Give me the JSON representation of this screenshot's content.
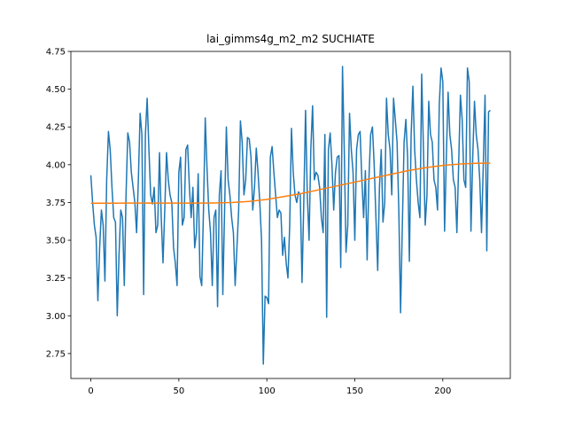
{
  "chart_data": {
    "type": "line",
    "title": "lai_gimms4g_m2_m2 SUCHIATE",
    "x": [
      0,
      1,
      2,
      3,
      4,
      5,
      6,
      7,
      8,
      9,
      10,
      11,
      12,
      13,
      14,
      15,
      16,
      17,
      18,
      19,
      20,
      21,
      22,
      23,
      24,
      25,
      26,
      27,
      28,
      29,
      30,
      31,
      32,
      33,
      34,
      35,
      36,
      37,
      38,
      39,
      40,
      41,
      42,
      43,
      44,
      45,
      46,
      47,
      48,
      49,
      50,
      51,
      52,
      53,
      54,
      55,
      56,
      57,
      58,
      59,
      60,
      61,
      62,
      63,
      64,
      65,
      66,
      67,
      68,
      69,
      70,
      71,
      72,
      73,
      74,
      75,
      76,
      77,
      78,
      79,
      80,
      81,
      82,
      83,
      84,
      85,
      86,
      87,
      88,
      89,
      90,
      91,
      92,
      93,
      94,
      95,
      96,
      97,
      98,
      99,
      100,
      101,
      102,
      103,
      104,
      105,
      106,
      107,
      108,
      109,
      110,
      111,
      112,
      113,
      114,
      115,
      116,
      117,
      118,
      119,
      120,
      121,
      122,
      123,
      124,
      125,
      126,
      127,
      128,
      129,
      130,
      131,
      132,
      133,
      134,
      135,
      136,
      137,
      138,
      139,
      140,
      141,
      142,
      143,
      144,
      145,
      146,
      147,
      148,
      149,
      150,
      151,
      152,
      153,
      154,
      155,
      156,
      157,
      158,
      159,
      160,
      161,
      162,
      163,
      164,
      165,
      166,
      167,
      168,
      169,
      170,
      171,
      172,
      173,
      174,
      175,
      176,
      177,
      178,
      179,
      180,
      181,
      182,
      183,
      184,
      185,
      186,
      187,
      188,
      189,
      190,
      191,
      192,
      193,
      194,
      195,
      196,
      197,
      198,
      199,
      200,
      201,
      202,
      203,
      204,
      205,
      206,
      207,
      208,
      209,
      210,
      211,
      212,
      213,
      214,
      215,
      216,
      217,
      218,
      219,
      220,
      221,
      222,
      223,
      224,
      225,
      226,
      227
    ],
    "series": [
      {
        "color": "#1f77b4",
        "values": [
          3.93,
          3.75,
          3.6,
          3.52,
          3.1,
          3.45,
          3.7,
          3.6,
          3.23,
          3.9,
          4.22,
          4.1,
          3.85,
          3.65,
          3.62,
          3.0,
          3.4,
          3.7,
          3.65,
          3.2,
          3.8,
          4.21,
          4.15,
          3.95,
          3.85,
          3.75,
          3.55,
          3.9,
          4.34,
          4.2,
          3.14,
          4.2,
          4.44,
          4.1,
          3.8,
          3.74,
          3.85,
          3.55,
          3.6,
          4.08,
          3.65,
          3.35,
          3.7,
          4.08,
          3.9,
          3.8,
          3.75,
          3.45,
          3.35,
          3.2,
          3.95,
          4.05,
          3.6,
          3.65,
          4.1,
          4.13,
          3.85,
          3.65,
          3.85,
          3.45,
          3.55,
          3.94,
          3.26,
          3.2,
          3.7,
          4.31,
          3.98,
          3.7,
          3.55,
          3.2,
          3.65,
          3.7,
          3.06,
          3.8,
          3.96,
          3.14,
          3.7,
          4.25,
          3.9,
          3.8,
          3.65,
          3.55,
          3.2,
          3.45,
          3.7,
          4.29,
          4.15,
          3.8,
          3.9,
          4.18,
          4.17,
          4.05,
          3.7,
          3.85,
          4.11,
          3.95,
          3.75,
          3.5,
          2.68,
          3.13,
          3.12,
          3.08,
          4.05,
          4.12,
          3.95,
          3.8,
          3.65,
          3.7,
          3.68,
          3.4,
          3.52,
          3.35,
          3.25,
          3.6,
          4.24,
          3.95,
          3.8,
          3.75,
          3.82,
          3.8,
          3.22,
          3.75,
          4.36,
          3.8,
          3.5,
          4.1,
          4.39,
          3.9,
          3.95,
          3.93,
          3.85,
          3.65,
          3.55,
          4.2,
          2.99,
          4.1,
          4.21,
          4.0,
          3.7,
          3.95,
          4.05,
          4.06,
          3.32,
          4.65,
          4.1,
          3.42,
          3.6,
          4.34,
          4.1,
          3.95,
          3.5,
          4.1,
          4.2,
          4.22,
          3.9,
          3.65,
          3.96,
          3.37,
          3.9,
          4.2,
          4.25,
          4.0,
          3.65,
          3.3,
          3.85,
          4.1,
          3.62,
          3.75,
          4.44,
          4.2,
          4.1,
          3.8,
          4.44,
          4.3,
          4.15,
          3.7,
          3.02,
          3.6,
          4.15,
          4.3,
          4.05,
          3.36,
          4.2,
          4.52,
          4.1,
          3.9,
          3.75,
          3.65,
          4.6,
          4.1,
          3.6,
          3.8,
          4.42,
          4.2,
          4.15,
          3.9,
          3.85,
          3.7,
          4.4,
          4.64,
          4.55,
          3.56,
          4.05,
          4.48,
          4.2,
          4.1,
          3.9,
          3.85,
          3.55,
          4.0,
          4.46,
          4.3,
          3.9,
          3.85,
          4.64,
          4.55,
          3.56,
          4.05,
          4.42,
          4.2,
          4.1,
          3.9,
          3.55,
          4.0,
          4.46,
          3.43,
          4.35,
          4.36
        ]
      },
      {
        "color": "#ff7f0e",
        "x": [
          0,
          10,
          20,
          30,
          40,
          50,
          60,
          70,
          80,
          90,
          100,
          110,
          120,
          130,
          140,
          150,
          160,
          170,
          180,
          190,
          200,
          210,
          220,
          227
        ],
        "values": [
          3.745,
          3.745,
          3.746,
          3.746,
          3.746,
          3.746,
          3.746,
          3.747,
          3.75,
          3.757,
          3.77,
          3.79,
          3.81,
          3.835,
          3.86,
          3.885,
          3.91,
          3.935,
          3.96,
          3.98,
          3.995,
          4.005,
          4.01,
          4.01
        ]
      }
    ],
    "xlim": [
      -11.35,
      238.35
    ],
    "xticks": [
      0,
      50,
      100,
      150,
      200
    ],
    "ylim": [
      2.585,
      4.75
    ],
    "yticks": [
      2.75,
      {
        "value": 3.0,
        "label": "3.00"
      },
      3.25,
      {
        "value": 3.5,
        "label": "3.50"
      },
      3.75,
      {
        "value": 4.0,
        "label": "4.00"
      },
      4.25,
      {
        "value": 4.5,
        "label": "4.50"
      },
      4.75
    ]
  }
}
